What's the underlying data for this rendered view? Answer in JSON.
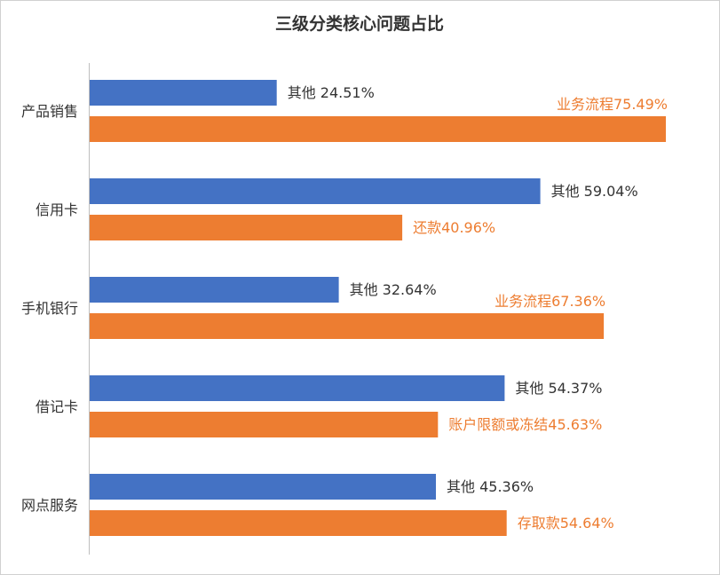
{
  "chart_data": {
    "type": "bar",
    "orientation": "horizontal",
    "title": "三级分类核心问题占比",
    "xlabel": "",
    "ylabel": "",
    "xlim": [
      0,
      75.49
    ],
    "grid": false,
    "legend": "none",
    "colors": {
      "blue": "#4472C4",
      "orange": "#ED7D31",
      "label_dark": "#333333",
      "axis": "#bfbfbf"
    },
    "categories": [
      {
        "name": "产品销售",
        "bars": [
          {
            "value": 24.51,
            "label": "其他 24.51%",
            "color": "blue"
          },
          {
            "value": 75.49,
            "label": "业务流程75.49%",
            "color": "orange"
          }
        ]
      },
      {
        "name": "信用卡",
        "bars": [
          {
            "value": 59.04,
            "label": "其他 59.04%",
            "color": "blue"
          },
          {
            "value": 40.96,
            "label": "还款40.96%",
            "color": "orange"
          }
        ]
      },
      {
        "name": "手机银行",
        "bars": [
          {
            "value": 32.64,
            "label": "其他 32.64%",
            "color": "blue"
          },
          {
            "value": 67.36,
            "label": "业务流程67.36%",
            "color": "orange"
          }
        ]
      },
      {
        "name": "借记卡",
        "bars": [
          {
            "value": 54.37,
            "label": "其他 54.37%",
            "color": "blue"
          },
          {
            "value": 45.63,
            "label": "账户限额或冻结45.63%",
            "color": "orange"
          }
        ]
      },
      {
        "name": "网点服务",
        "bars": [
          {
            "value": 45.36,
            "label": "其他 45.36%",
            "color": "blue"
          },
          {
            "value": 54.64,
            "label": "存取款54.64%",
            "color": "orange"
          }
        ]
      }
    ]
  }
}
